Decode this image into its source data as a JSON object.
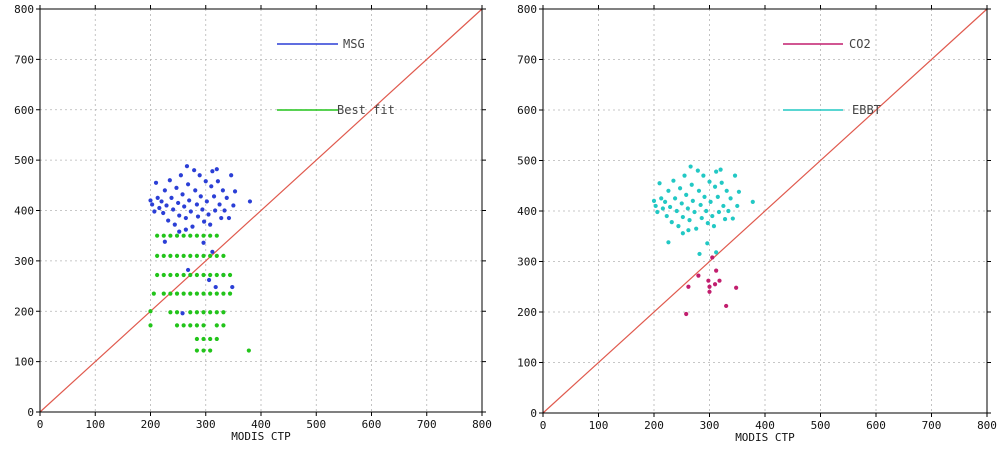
{
  "chart_data": [
    {
      "type": "scatter",
      "title": "",
      "xlabel": "MODIS CTP",
      "ylabel": "",
      "xlim": [
        0,
        800
      ],
      "ylim": [
        0,
        800
      ],
      "xticks": [
        "0",
        "100",
        "200",
        "300",
        "400",
        "500",
        "600",
        "700",
        "800"
      ],
      "yticks": [
        "0",
        "100",
        "200",
        "300",
        "400",
        "500",
        "600",
        "700",
        "800"
      ],
      "grid": true,
      "legend_position": "top-right",
      "reference_line": {
        "x": [
          0,
          800
        ],
        "y": [
          0,
          800
        ],
        "color": "#e05a4e"
      },
      "series": [
        {
          "name": "MSG",
          "color": "#2b3fd6",
          "points": [
            [
              200,
              420
            ],
            [
              203,
              412
            ],
            [
              207,
              398
            ],
            [
              210,
              455
            ],
            [
              213,
              425
            ],
            [
              216,
              405
            ],
            [
              220,
              418
            ],
            [
              223,
              395
            ],
            [
              226,
              440
            ],
            [
              229,
              410
            ],
            [
              232,
              380
            ],
            [
              235,
              460
            ],
            [
              238,
              425
            ],
            [
              241,
              402
            ],
            [
              244,
              372
            ],
            [
              247,
              445
            ],
            [
              250,
              415
            ],
            [
              252,
              390
            ],
            [
              255,
              470
            ],
            [
              258,
              432
            ],
            [
              261,
              408
            ],
            [
              264,
              385
            ],
            [
              266,
              488
            ],
            [
              268,
              452
            ],
            [
              270,
              420
            ],
            [
              273,
              398
            ],
            [
              276,
              368
            ],
            [
              279,
              480
            ],
            [
              281,
              440
            ],
            [
              284,
              412
            ],
            [
              286,
              388
            ],
            [
              289,
              470
            ],
            [
              291,
              428
            ],
            [
              294,
              402
            ],
            [
              297,
              378
            ],
            [
              300,
              458
            ],
            [
              302,
              418
            ],
            [
              305,
              392
            ],
            [
              308,
              372
            ],
            [
              310,
              448
            ],
            [
              312,
              478
            ],
            [
              315,
              428
            ],
            [
              317,
              400
            ],
            [
              320,
              482
            ],
            [
              322,
              458
            ],
            [
              325,
              412
            ],
            [
              328,
              385
            ],
            [
              331,
              440
            ],
            [
              334,
              400
            ],
            [
              338,
              425
            ],
            [
              342,
              385
            ],
            [
              346,
              470
            ],
            [
              350,
              410
            ],
            [
              353,
              438
            ],
            [
              380,
              418
            ],
            [
              226,
              338
            ],
            [
              252,
              358
            ],
            [
              264,
              362
            ],
            [
              258,
              196
            ],
            [
              268,
              282
            ],
            [
              296,
              336
            ],
            [
              306,
              262
            ],
            [
              318,
              248
            ],
            [
              332,
              272
            ],
            [
              348,
              248
            ],
            [
              312,
              318
            ]
          ]
        },
        {
          "name": "Best fit",
          "color": "#22c41a",
          "points": [
            [
              200,
              200
            ],
            [
              200,
              172
            ],
            [
              206,
              235
            ],
            [
              212,
              350
            ],
            [
              212,
              310
            ],
            [
              212,
              272
            ],
            [
              224,
              350
            ],
            [
              224,
              310
            ],
            [
              224,
              272
            ],
            [
              224,
              235
            ],
            [
              236,
              350
            ],
            [
              236,
              310
            ],
            [
              236,
              272
            ],
            [
              236,
              235
            ],
            [
              236,
              198
            ],
            [
              248,
              350
            ],
            [
              248,
              310
            ],
            [
              248,
              272
            ],
            [
              248,
              235
            ],
            [
              248,
              198
            ],
            [
              248,
              172
            ],
            [
              260,
              350
            ],
            [
              260,
              310
            ],
            [
              260,
              272
            ],
            [
              260,
              235
            ],
            [
              260,
              172
            ],
            [
              272,
              350
            ],
            [
              272,
              310
            ],
            [
              272,
              272
            ],
            [
              272,
              235
            ],
            [
              272,
              198
            ],
            [
              272,
              172
            ],
            [
              284,
              350
            ],
            [
              284,
              310
            ],
            [
              284,
              272
            ],
            [
              284,
              235
            ],
            [
              284,
              198
            ],
            [
              284,
              172
            ],
            [
              284,
              145
            ],
            [
              284,
              122
            ],
            [
              296,
              350
            ],
            [
              296,
              310
            ],
            [
              296,
              272
            ],
            [
              296,
              235
            ],
            [
              296,
              198
            ],
            [
              296,
              172
            ],
            [
              296,
              145
            ],
            [
              296,
              122
            ],
            [
              308,
              350
            ],
            [
              308,
              310
            ],
            [
              308,
              272
            ],
            [
              308,
              235
            ],
            [
              308,
              198
            ],
            [
              308,
              145
            ],
            [
              308,
              122
            ],
            [
              320,
              350
            ],
            [
              320,
              310
            ],
            [
              320,
              272
            ],
            [
              320,
              235
            ],
            [
              320,
              198
            ],
            [
              320,
              172
            ],
            [
              320,
              145
            ],
            [
              332,
              310
            ],
            [
              332,
              272
            ],
            [
              332,
              235
            ],
            [
              332,
              198
            ],
            [
              332,
              172
            ],
            [
              344,
              272
            ],
            [
              344,
              235
            ],
            [
              378,
              122
            ]
          ]
        }
      ]
    },
    {
      "type": "scatter",
      "title": "",
      "xlabel": "MODIS CTP",
      "ylabel": "",
      "xlim": [
        0,
        800
      ],
      "ylim": [
        0,
        800
      ],
      "xticks": [
        "0",
        "100",
        "200",
        "300",
        "400",
        "500",
        "600",
        "700",
        "800"
      ],
      "yticks": [
        "0",
        "100",
        "200",
        "300",
        "400",
        "500",
        "600",
        "700",
        "800"
      ],
      "grid": true,
      "legend_position": "top-right",
      "reference_line": {
        "x": [
          0,
          800
        ],
        "y": [
          0,
          800
        ],
        "color": "#e05a4e"
      },
      "series": [
        {
          "name": "CO2",
          "color": "#c21e6e",
          "points": [
            [
              258,
              196
            ],
            [
              262,
              250
            ],
            [
              280,
              272
            ],
            [
              298,
              262
            ],
            [
              300,
              250
            ],
            [
              300,
              240
            ],
            [
              305,
              308
            ],
            [
              310,
              255
            ],
            [
              312,
              282
            ],
            [
              318,
              262
            ],
            [
              330,
              212
            ],
            [
              348,
              248
            ]
          ]
        },
        {
          "name": "EBBT",
          "color": "#22c8c4",
          "points": [
            [
              200,
              420
            ],
            [
              203,
              410
            ],
            [
              206,
              398
            ],
            [
              210,
              455
            ],
            [
              213,
              425
            ],
            [
              216,
              405
            ],
            [
              220,
              418
            ],
            [
              223,
              390
            ],
            [
              226,
              440
            ],
            [
              229,
              408
            ],
            [
              232,
              378
            ],
            [
              235,
              460
            ],
            [
              238,
              425
            ],
            [
              241,
              400
            ],
            [
              244,
              370
            ],
            [
              247,
              445
            ],
            [
              250,
              415
            ],
            [
              252,
              388
            ],
            [
              255,
              470
            ],
            [
              258,
              432
            ],
            [
              261,
              405
            ],
            [
              264,
              382
            ],
            [
              266,
              488
            ],
            [
              268,
              452
            ],
            [
              270,
              420
            ],
            [
              273,
              398
            ],
            [
              276,
              365
            ],
            [
              279,
              480
            ],
            [
              281,
              440
            ],
            [
              284,
              412
            ],
            [
              286,
              386
            ],
            [
              289,
              470
            ],
            [
              291,
              428
            ],
            [
              294,
              400
            ],
            [
              297,
              376
            ],
            [
              300,
              458
            ],
            [
              302,
              418
            ],
            [
              305,
              390
            ],
            [
              308,
              370
            ],
            [
              310,
              448
            ],
            [
              312,
              478
            ],
            [
              315,
              428
            ],
            [
              317,
              398
            ],
            [
              320,
              482
            ],
            [
              322,
              456
            ],
            [
              325,
              410
            ],
            [
              328,
              384
            ],
            [
              331,
              440
            ],
            [
              334,
              400
            ],
            [
              338,
              425
            ],
            [
              342,
              385
            ],
            [
              346,
              470
            ],
            [
              350,
              410
            ],
            [
              353,
              438
            ],
            [
              378,
              418
            ],
            [
              226,
              338
            ],
            [
              252,
              356
            ],
            [
              262,
              362
            ],
            [
              282,
              315
            ],
            [
              296,
              336
            ],
            [
              312,
              318
            ]
          ]
        }
      ]
    }
  ]
}
